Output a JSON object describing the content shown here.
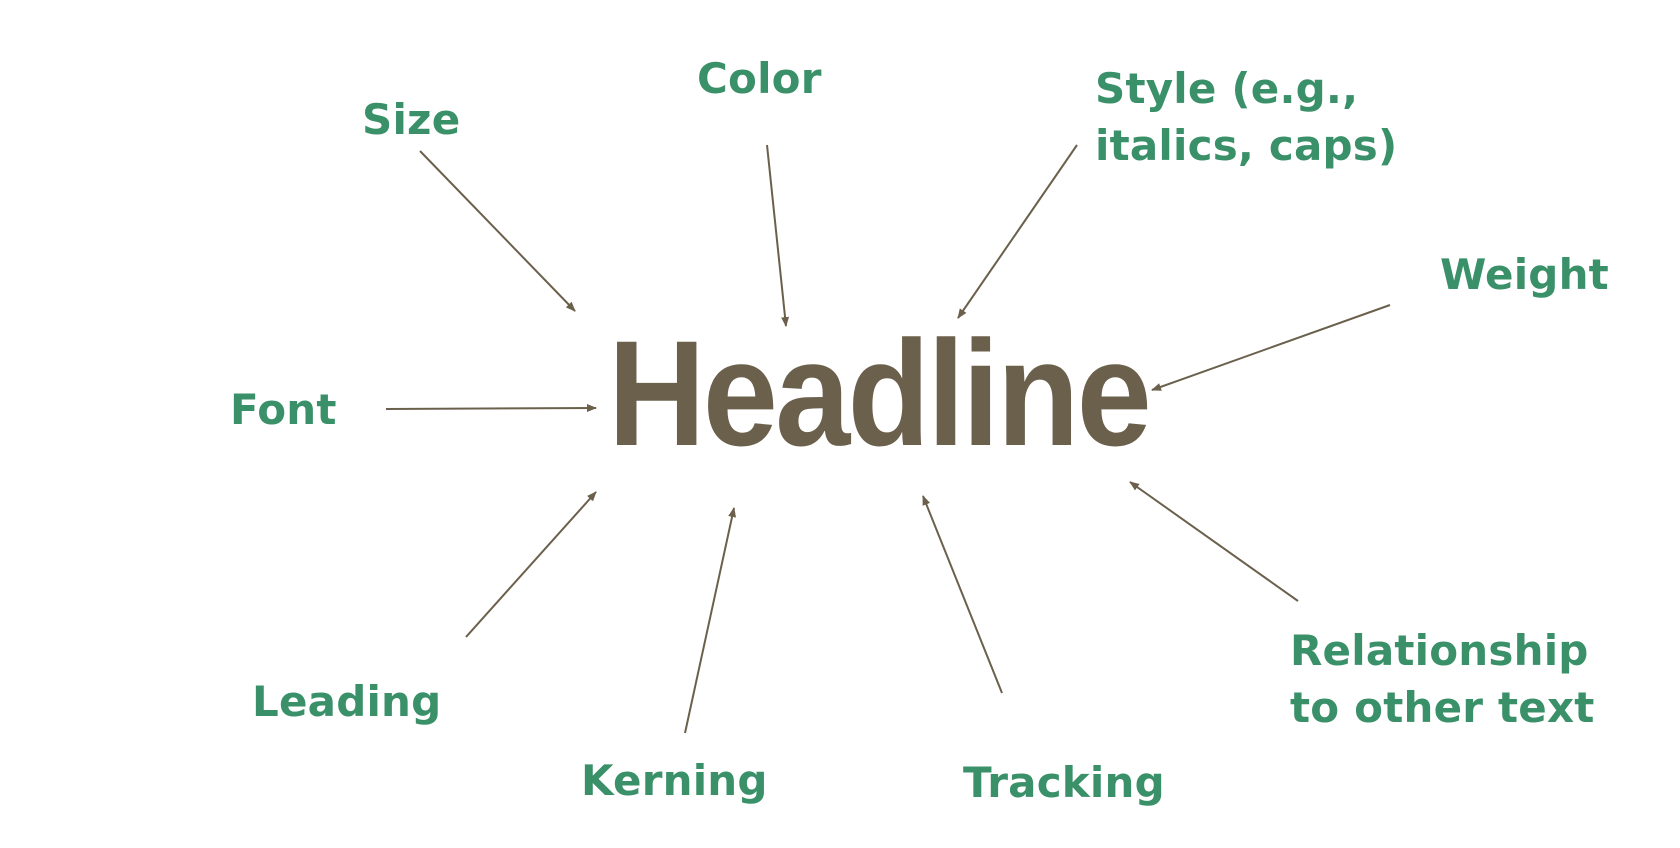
{
  "diagram": {
    "center": {
      "text": "Headline",
      "color": "#6b604c"
    },
    "label_color": "#3a9068",
    "arrow_color": "#6b604c",
    "labels": {
      "size": [
        "Size"
      ],
      "color": [
        "Color"
      ],
      "style": [
        "Style (e.g.,",
        "italics, caps)"
      ],
      "weight": [
        "Weight"
      ],
      "font": [
        "Font"
      ],
      "relationship": [
        "Relationship",
        "to other text"
      ],
      "leading": [
        "Leading"
      ],
      "kerning": [
        "Kerning"
      ],
      "tracking": [
        "Tracking"
      ]
    }
  }
}
